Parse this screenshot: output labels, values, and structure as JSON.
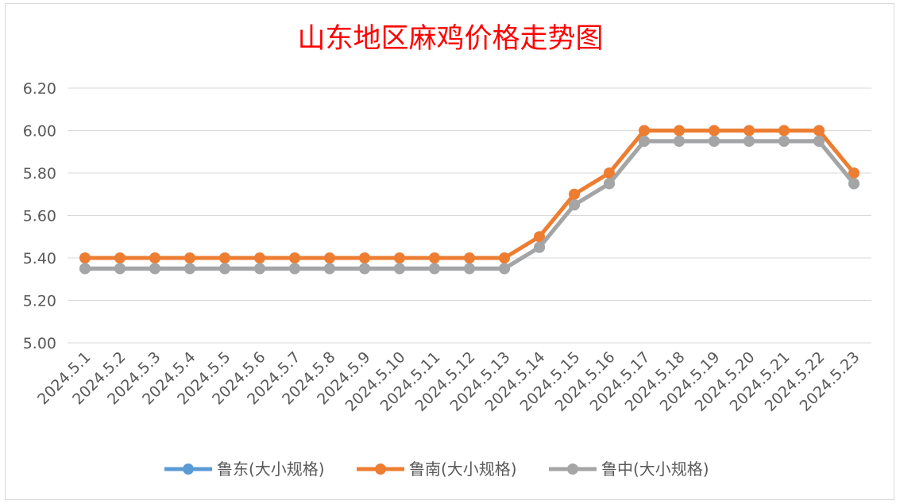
{
  "chart_data": {
    "type": "line",
    "title": "山东地区麻鸡价格走势图",
    "categories": [
      "2024.5.1",
      "2024.5.2",
      "2024.5.3",
      "2024.5.4",
      "2024.5.5",
      "2024.5.6",
      "2024.5.7",
      "2024.5.8",
      "2024.5.9",
      "2024.5.10",
      "2024.5.11",
      "2024.5.12",
      "2024.5.13",
      "2024.5.14",
      "2024.5.15",
      "2024.5.16",
      "2024.5.17",
      "2024.5.18",
      "2024.5.19",
      "2024.5.20",
      "2024.5.21",
      "2024.5.22",
      "2024.5.23"
    ],
    "y_ticks": [
      "5.00",
      "5.20",
      "5.40",
      "5.60",
      "5.80",
      "6.00",
      "6.20"
    ],
    "ylim": [
      5.0,
      6.2
    ],
    "grid": true,
    "legend_position": "bottom",
    "series": [
      {
        "name": "鲁东(大小规格)",
        "color": "#5b9bd5",
        "values": [
          5.35,
          5.35,
          5.35,
          5.35,
          5.35,
          5.35,
          5.35,
          5.35,
          5.35,
          5.35,
          5.35,
          5.35,
          5.35,
          5.45,
          5.65,
          5.75,
          5.95,
          5.95,
          5.95,
          5.95,
          5.95,
          5.95,
          5.75
        ]
      },
      {
        "name": "鲁南(大小规格)",
        "color": "#ed7d31",
        "values": [
          5.4,
          5.4,
          5.4,
          5.4,
          5.4,
          5.4,
          5.4,
          5.4,
          5.4,
          5.4,
          5.4,
          5.4,
          5.4,
          5.5,
          5.7,
          5.8,
          6.0,
          6.0,
          6.0,
          6.0,
          6.0,
          6.0,
          5.8
        ]
      },
      {
        "name": "鲁中(大小规格)",
        "color": "#a5a5a5",
        "values": [
          5.35,
          5.35,
          5.35,
          5.35,
          5.35,
          5.35,
          5.35,
          5.35,
          5.35,
          5.35,
          5.35,
          5.35,
          5.35,
          5.45,
          5.65,
          5.75,
          5.95,
          5.95,
          5.95,
          5.95,
          5.95,
          5.95,
          5.75
        ]
      }
    ]
  }
}
